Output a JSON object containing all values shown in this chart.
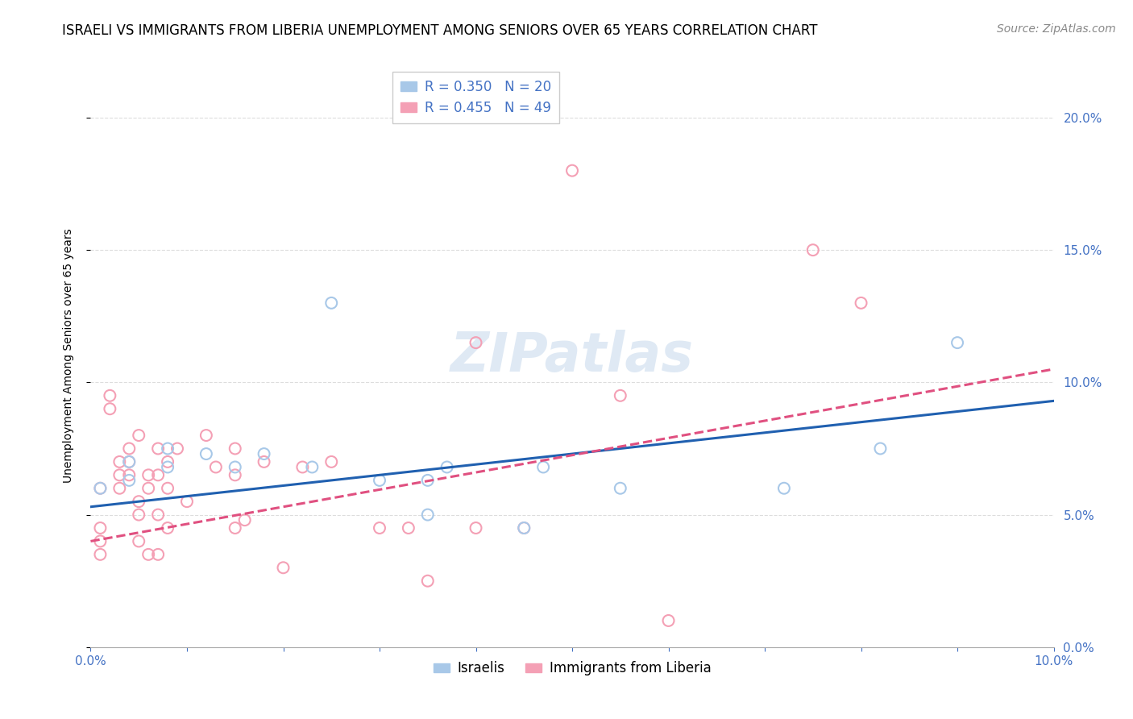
{
  "title": "ISRAELI VS IMMIGRANTS FROM LIBERIA UNEMPLOYMENT AMONG SENIORS OVER 65 YEARS CORRELATION CHART",
  "source": "Source: ZipAtlas.com",
  "ylabel": "Unemployment Among Seniors over 65 years",
  "x_min": 0.0,
  "x_max": 0.1,
  "y_min": 0.0,
  "y_max": 0.22,
  "watermark": "ZIPatlas",
  "israelis": {
    "label": "Israelis",
    "R": 0.35,
    "N": 20,
    "color": "#a8c8e8",
    "line_color": "#2060b0",
    "points": [
      [
        0.001,
        0.06
      ],
      [
        0.004,
        0.063
      ],
      [
        0.004,
        0.07
      ],
      [
        0.008,
        0.068
      ],
      [
        0.008,
        0.075
      ],
      [
        0.012,
        0.073
      ],
      [
        0.015,
        0.068
      ],
      [
        0.018,
        0.073
      ],
      [
        0.023,
        0.068
      ],
      [
        0.025,
        0.13
      ],
      [
        0.03,
        0.063
      ],
      [
        0.035,
        0.063
      ],
      [
        0.035,
        0.05
      ],
      [
        0.037,
        0.068
      ],
      [
        0.045,
        0.045
      ],
      [
        0.047,
        0.068
      ],
      [
        0.055,
        0.06
      ],
      [
        0.072,
        0.06
      ],
      [
        0.082,
        0.075
      ],
      [
        0.09,
        0.115
      ]
    ],
    "trendline": [
      [
        0.0,
        0.053
      ],
      [
        0.1,
        0.093
      ]
    ]
  },
  "liberia": {
    "label": "Immigrants from Liberia",
    "R": 0.455,
    "N": 49,
    "color": "#f4a0b5",
    "line_color": "#e05080",
    "points": [
      [
        0.001,
        0.06
      ],
      [
        0.001,
        0.045
      ],
      [
        0.001,
        0.04
      ],
      [
        0.001,
        0.035
      ],
      [
        0.002,
        0.095
      ],
      [
        0.002,
        0.09
      ],
      [
        0.003,
        0.07
      ],
      [
        0.003,
        0.065
      ],
      [
        0.003,
        0.06
      ],
      [
        0.004,
        0.075
      ],
      [
        0.004,
        0.07
      ],
      [
        0.004,
        0.065
      ],
      [
        0.005,
        0.08
      ],
      [
        0.005,
        0.055
      ],
      [
        0.005,
        0.05
      ],
      [
        0.005,
        0.04
      ],
      [
        0.006,
        0.065
      ],
      [
        0.006,
        0.06
      ],
      [
        0.006,
        0.035
      ],
      [
        0.007,
        0.075
      ],
      [
        0.007,
        0.065
      ],
      [
        0.007,
        0.05
      ],
      [
        0.007,
        0.035
      ],
      [
        0.008,
        0.07
      ],
      [
        0.008,
        0.06
      ],
      [
        0.008,
        0.045
      ],
      [
        0.009,
        0.075
      ],
      [
        0.01,
        0.055
      ],
      [
        0.012,
        0.08
      ],
      [
        0.013,
        0.068
      ],
      [
        0.015,
        0.075
      ],
      [
        0.015,
        0.065
      ],
      [
        0.015,
        0.045
      ],
      [
        0.016,
        0.048
      ],
      [
        0.018,
        0.07
      ],
      [
        0.02,
        0.03
      ],
      [
        0.022,
        0.068
      ],
      [
        0.025,
        0.07
      ],
      [
        0.03,
        0.045
      ],
      [
        0.033,
        0.045
      ],
      [
        0.035,
        0.025
      ],
      [
        0.04,
        0.115
      ],
      [
        0.04,
        0.045
      ],
      [
        0.045,
        0.045
      ],
      [
        0.05,
        0.18
      ],
      [
        0.055,
        0.095
      ],
      [
        0.075,
        0.15
      ],
      [
        0.08,
        0.13
      ],
      [
        0.06,
        0.01
      ]
    ],
    "trendline": [
      [
        0.0,
        0.04
      ],
      [
        0.1,
        0.105
      ]
    ]
  },
  "title_fontsize": 12,
  "axis_label_fontsize": 10,
  "tick_fontsize": 11,
  "legend_fontsize": 12,
  "source_fontsize": 10,
  "watermark_fontsize": 48,
  "scatter_size": 100,
  "scatter_linewidth": 1.5,
  "grid_color": "#dddddd",
  "background_color": "#ffffff",
  "tick_color": "#4472c4",
  "right_tick_color": "#4472c4"
}
